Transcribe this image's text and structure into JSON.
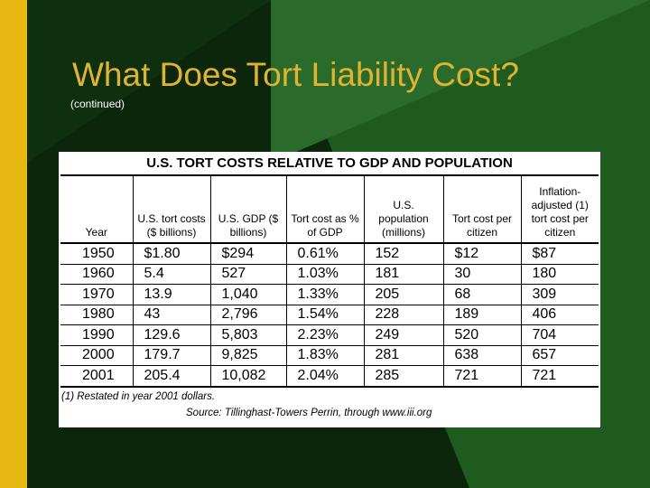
{
  "slide": {
    "title": "What Does Tort Liability Cost?",
    "subtitle": "(continued)"
  },
  "colors": {
    "accent_bar": "#e8b812",
    "title": "#e0b431",
    "background_dark": "#0d2a0d",
    "background_green": "#1f5a1f"
  },
  "table": {
    "title": "U.S. TORT COSTS RELATIVE TO GDP AND POPULATION",
    "headers": [
      "Year",
      "U.S. tort costs ($ billions)",
      "U.S. GDP ($ billions)",
      "Tort cost as % of GDP",
      "U.S. population (millions)",
      "Tort cost per citizen",
      "Inflation-adjusted (1) tort cost per citizen"
    ],
    "rows": [
      [
        "1950",
        "$1.80",
        "$294",
        "0.61%",
        "152",
        "$12",
        "$87"
      ],
      [
        "1960",
        "5.4",
        "527",
        "1.03%",
        "181",
        "30",
        "180"
      ],
      [
        "1970",
        "13.9",
        "1,040",
        "1.33%",
        "205",
        "68",
        "309"
      ],
      [
        "1980",
        "43",
        "2,796",
        "1.54%",
        "228",
        "189",
        "406"
      ],
      [
        "1990",
        "129.6",
        "5,803",
        "2.23%",
        "249",
        "520",
        "704"
      ],
      [
        "2000",
        "179.7",
        "9,825",
        "1.83%",
        "281",
        "638",
        "657"
      ],
      [
        "2001",
        "205.4",
        "10,082",
        "2.04%",
        "285",
        "721",
        "721"
      ]
    ],
    "footnote": "(1) Restated in year 2001 dollars.",
    "source": "Source: Tillinghast-Towers Perrin, through www.iii.org"
  }
}
